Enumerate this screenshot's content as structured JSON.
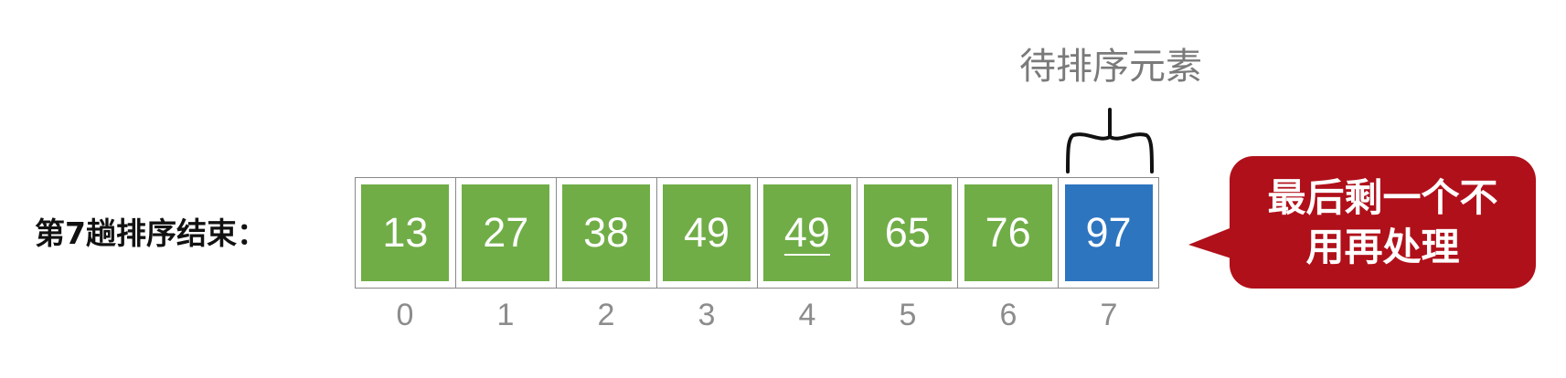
{
  "stage_label": "第7趟排序结束：",
  "pending_label": "待排序元素",
  "callout": {
    "line1": "最后剩一个不",
    "line2": "用再处理"
  },
  "colors": {
    "sorted": "#70ad47",
    "current": "#2e75c0",
    "callout": "#b0101a"
  },
  "cells": [
    {
      "value": "13",
      "state": "sorted",
      "underlined": false
    },
    {
      "value": "27",
      "state": "sorted",
      "underlined": false
    },
    {
      "value": "38",
      "state": "sorted",
      "underlined": false
    },
    {
      "value": "49",
      "state": "sorted",
      "underlined": false
    },
    {
      "value": "49",
      "state": "sorted",
      "underlined": true
    },
    {
      "value": "65",
      "state": "sorted",
      "underlined": false
    },
    {
      "value": "76",
      "state": "sorted",
      "underlined": false
    },
    {
      "value": "97",
      "state": "current",
      "underlined": false
    }
  ],
  "indices": [
    "0",
    "1",
    "2",
    "3",
    "4",
    "5",
    "6",
    "7"
  ]
}
